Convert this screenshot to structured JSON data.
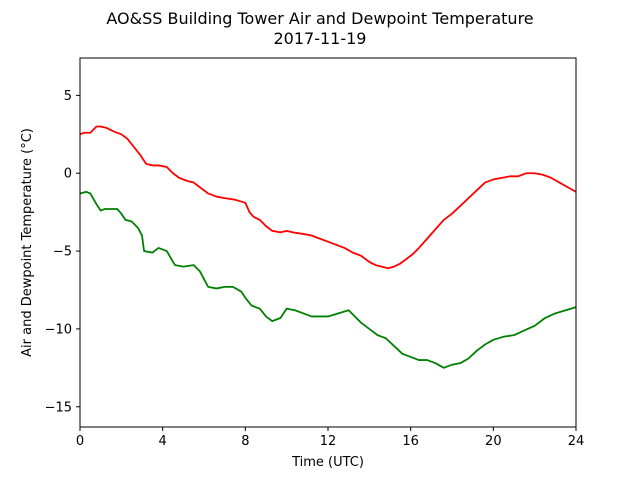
{
  "chart_data": {
    "type": "line",
    "title": "AO&SS Building Tower Air and Dewpoint Temperature",
    "subtitle": "2017-11-19",
    "xlabel": "Time (UTC)",
    "ylabel": "Air and Dewpoint Temperature (°C)",
    "xlim": [
      0,
      24
    ],
    "ylim": [
      -16.3,
      7.4
    ],
    "xticks": [
      0,
      4,
      8,
      12,
      16,
      20,
      24
    ],
    "yticks": [
      5,
      0,
      -5,
      -10,
      -15
    ],
    "ytick_labels": [
      "5",
      "0",
      "−5",
      "−10",
      "−15"
    ],
    "grid": false,
    "legend": "none",
    "series": [
      {
        "color": "#ff0000",
        "x": [
          0,
          0.2,
          0.5,
          0.8,
          1.0,
          1.3,
          1.6,
          2.0,
          2.3,
          2.6,
          2.9,
          3.2,
          3.5,
          3.8,
          4.2,
          4.5,
          4.8,
          5.2,
          5.5,
          5.8,
          6.2,
          6.6,
          7.0,
          7.5,
          8.0,
          8.2,
          8.4,
          8.7,
          9.0,
          9.3,
          9.7,
          10.0,
          10.3,
          10.8,
          11.2,
          11.6,
          12.0,
          12.4,
          12.8,
          13.2,
          13.6,
          14.0,
          14.3,
          14.6,
          14.9,
          15.2,
          15.5,
          15.8,
          16.1,
          16.4,
          16.8,
          17.2,
          17.6,
          18.0,
          18.4,
          18.8,
          19.2,
          19.6,
          20.0,
          20.4,
          20.8,
          21.2,
          21.6,
          22.0,
          22.4,
          22.8,
          23.2,
          23.6,
          24.0
        ],
        "y": [
          2.5,
          2.6,
          2.6,
          3.0,
          3.0,
          2.9,
          2.7,
          2.5,
          2.2,
          1.7,
          1.2,
          0.6,
          0.5,
          0.5,
          0.4,
          0.0,
          -0.3,
          -0.5,
          -0.6,
          -0.9,
          -1.3,
          -1.5,
          -1.6,
          -1.7,
          -1.9,
          -2.5,
          -2.8,
          -3.0,
          -3.4,
          -3.7,
          -3.8,
          -3.7,
          -3.8,
          -3.9,
          -4.0,
          -4.2,
          -4.4,
          -4.6,
          -4.8,
          -5.1,
          -5.3,
          -5.7,
          -5.9,
          -6.0,
          -6.1,
          -6.0,
          -5.8,
          -5.5,
          -5.2,
          -4.8,
          -4.2,
          -3.6,
          -3.0,
          -2.6,
          -2.1,
          -1.6,
          -1.1,
          -0.6,
          -0.4,
          -0.3,
          -0.2,
          -0.2,
          0.0,
          0.0,
          -0.1,
          -0.3,
          -0.6,
          -0.9,
          -1.2
        ]
      },
      {
        "color": "#008000",
        "x": [
          0,
          0.3,
          0.5,
          0.8,
          1.0,
          1.2,
          1.5,
          1.8,
          2.0,
          2.2,
          2.5,
          2.8,
          3.0,
          3.1,
          3.5,
          3.8,
          4.2,
          4.5,
          4.6,
          5.0,
          5.5,
          5.8,
          6.0,
          6.2,
          6.6,
          7.0,
          7.4,
          7.8,
          8.0,
          8.3,
          8.7,
          9.0,
          9.3,
          9.7,
          10.0,
          10.4,
          10.8,
          11.2,
          11.6,
          12.0,
          12.5,
          13.0,
          13.3,
          13.6,
          14.0,
          14.4,
          14.8,
          15.2,
          15.6,
          16.0,
          16.4,
          16.8,
          17.2,
          17.6,
          18.0,
          18.4,
          18.8,
          19.2,
          19.6,
          20.0,
          20.5,
          21.0,
          21.5,
          22.0,
          22.5,
          23.0,
          23.5,
          24.0
        ],
        "y": [
          -1.3,
          -1.2,
          -1.3,
          -2.0,
          -2.4,
          -2.3,
          -2.3,
          -2.3,
          -2.6,
          -3.0,
          -3.1,
          -3.5,
          -4.0,
          -5.0,
          -5.1,
          -4.8,
          -5.0,
          -5.7,
          -5.9,
          -6.0,
          -5.9,
          -6.3,
          -6.8,
          -7.3,
          -7.4,
          -7.3,
          -7.3,
          -7.6,
          -8.0,
          -8.5,
          -8.7,
          -9.2,
          -9.5,
          -9.3,
          -8.7,
          -8.8,
          -9.0,
          -9.2,
          -9.2,
          -9.2,
          -9.0,
          -8.8,
          -9.2,
          -9.6,
          -10.0,
          -10.4,
          -10.6,
          -11.1,
          -11.6,
          -11.8,
          -12.0,
          -12.0,
          -12.2,
          -12.5,
          -12.3,
          -12.2,
          -11.9,
          -11.4,
          -11.0,
          -10.7,
          -10.5,
          -10.4,
          -10.1,
          -9.8,
          -9.3,
          -9.0,
          -8.8,
          -8.6
        ]
      }
    ]
  }
}
